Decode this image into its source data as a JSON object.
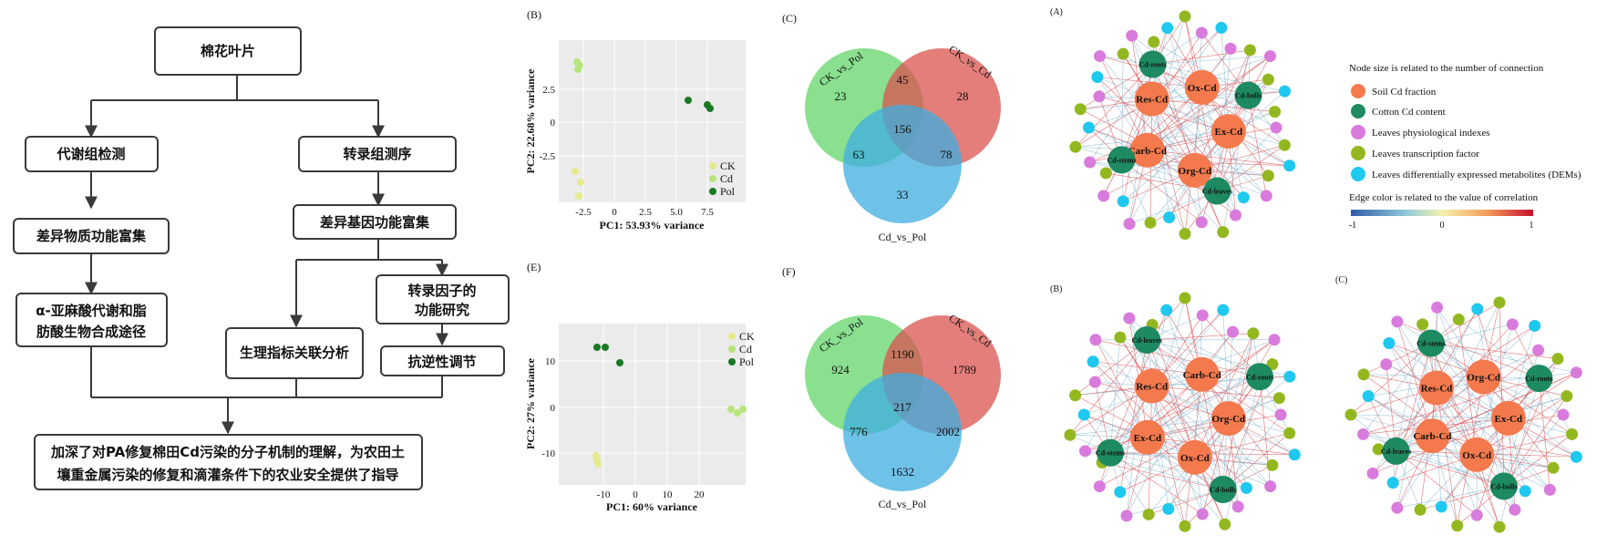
{
  "flowchart": {
    "top": "棉花叶片",
    "left1": "代谢组检测",
    "right1": "转录组测序",
    "left2": "差异物质功能富集",
    "right2": "差异基因功能富集",
    "left3_line1": "α-亚麻酸代谢和脂",
    "left3_line2": "肪酸生物合成途径",
    "mid3": "生理指标关联分析",
    "right3_line1": "转录因子的",
    "right3_line2": "功能研究",
    "right4": "抗逆性调节",
    "bottom_line1": "加深了对PA修复棉田Cd污染的分子机制的理解，为农田土",
    "bottom_line2": "壤重金属污染的修复和滴灌条件下的农业安全提供了指导"
  },
  "pca_B": {
    "panel_label": "(B)",
    "xlabel": "PC1: 53.93% variance",
    "ylabel": "PC2: 22.68% variance",
    "xticks": [
      "-2.5",
      "0",
      "2.5",
      "5.0",
      "7.5"
    ],
    "yticks": [
      "2.5",
      "0",
      "-2.5"
    ],
    "legend": [
      "CK",
      "Cd",
      "Pol"
    ]
  },
  "pca_E": {
    "panel_label": "(E)",
    "xlabel": "PC1: 60% variance",
    "ylabel": "PC2: 27% variance",
    "xticks": [
      "-10",
      "0",
      "10",
      "20"
    ],
    "yticks": [
      "10",
      "0",
      "-10"
    ],
    "legend": [
      "CK",
      "Cd",
      "Pol"
    ]
  },
  "venn_C": {
    "panel_label": "(C)",
    "set_a": "CK_vs_Pol",
    "set_b": "CK_vs_Cd",
    "set_c": "Cd_vs_Pol",
    "only_a": "23",
    "only_b": "28",
    "ab": "45",
    "abc": "156",
    "ac": "63",
    "bc": "78",
    "only_c": "33"
  },
  "venn_F": {
    "panel_label": "(F)",
    "set_a": "CK_vs_Pol",
    "set_b": "CK_vs_Cd",
    "set_c": "Cd_vs_Pol",
    "only_a": "924",
    "only_b": "1789",
    "ab": "1190",
    "abc": "217",
    "ac": "776",
    "bc": "2002",
    "only_c": "1632"
  },
  "network_A": {
    "panel_label": "(A)",
    "cd_nodes": [
      "Cd-bolls",
      "Cd-leaves",
      "Cd-stems",
      "Cd-roots"
    ],
    "soil_nodes": [
      "Ox-Cd",
      "Ex-Cd",
      "Org-Cd",
      "Carb-Cd",
      "Res-Cd"
    ]
  },
  "network_B": {
    "panel_label": "(B)",
    "cd_nodes": [
      "Cd-roots",
      "Cd-bolls",
      "Cd-stems",
      "Cd-leaves"
    ],
    "soil_nodes": [
      "Carb-Cd",
      "Org-Cd",
      "Ox-Cd",
      "Ex-Cd",
      "Res-Cd"
    ]
  },
  "network_C": {
    "panel_label": "(C)",
    "cd_nodes": [
      "Cd-roots",
      "Cd-bolls",
      "Cd-leaves",
      "Cd-stems"
    ],
    "soil_nodes": [
      "Org-Cd",
      "Ex-Cd",
      "Ox-Cd",
      "Carb-Cd",
      "Res-Cd"
    ]
  },
  "legend": {
    "title": "Node size is related to  the number of connection",
    "items": [
      "Soil Cd fraction",
      "Cotton Cd content",
      "Leaves physiological indexes",
      "Leaves transcription factor",
      "Leaves differentially expressed metabolites (DEMs)"
    ],
    "edge_title": "Edge color is related to the value of correlation",
    "scale_min": "-1",
    "scale_mid": "0",
    "scale_max": "1"
  },
  "colors": {
    "soil": "#f4794d",
    "cotton": "#1e8a62",
    "physio": "#d97bdc",
    "tf": "#93b81f",
    "dem": "#1ec8ef",
    "venn_a": "#63d66a",
    "venn_b": "#d9534f",
    "venn_c": "#3daee0",
    "ck": "#e6ea8c",
    "cd": "#b5e57c",
    "pol": "#1a7a24"
  }
}
